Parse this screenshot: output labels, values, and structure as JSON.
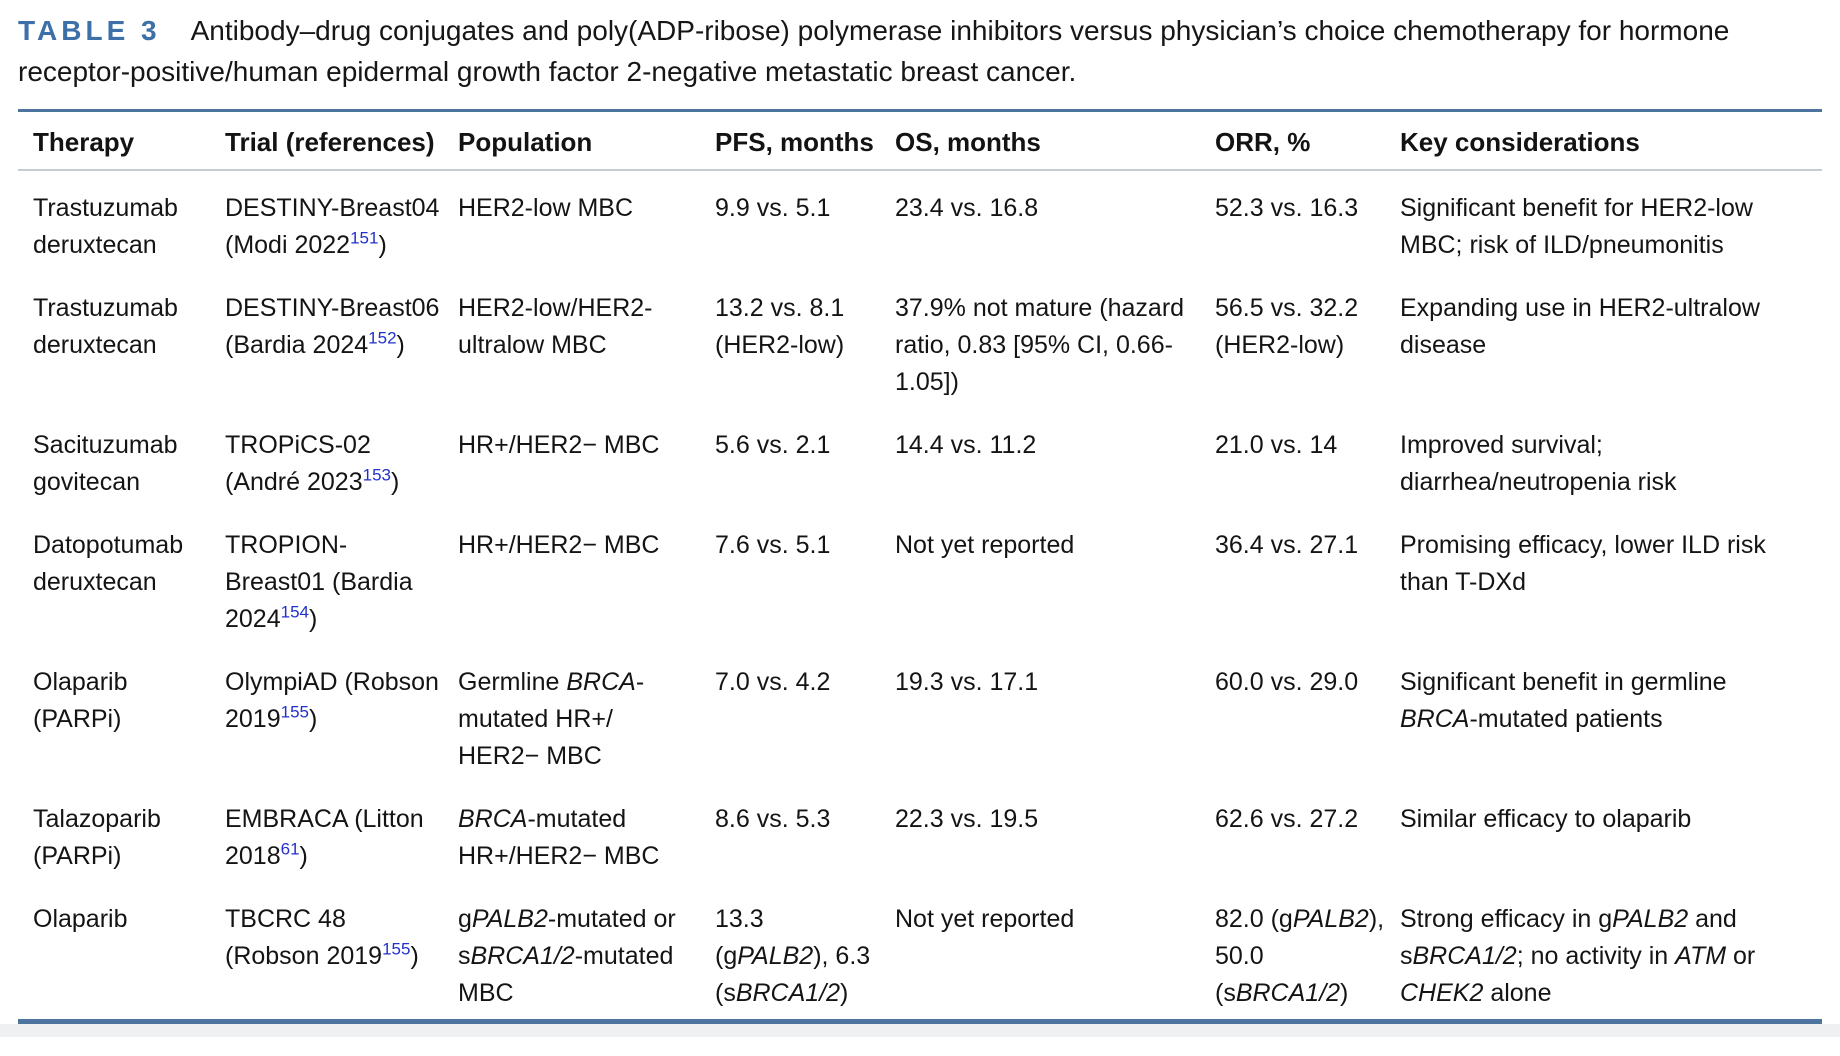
{
  "colors": {
    "label_blue": "#3d6fa8",
    "rule_blue": "#4d749e",
    "ref_blue": "#2230cc"
  },
  "header": {
    "label": "TABLE 3",
    "caption": "Antibody–drug conjugates and poly(ADP-ribose) polymerase inhibitors versus physician’s choice chemotherapy for hormone receptor-positive/human epidermal growth factor 2-negative metastatic breast cancer."
  },
  "table": {
    "columns": [
      "Therapy",
      "Trial (references)",
      "Population",
      "PFS, months",
      "OS, months",
      "ORR, %",
      "Key considerations"
    ],
    "rows": [
      {
        "cells": [
          [
            {
              "t": "Trastuzumab deruxtecan"
            }
          ],
          [
            {
              "t": "DESTINY-Breast04 (Modi 2022"
            },
            {
              "t": "151",
              "s": "sup"
            },
            {
              "t": ")"
            }
          ],
          [
            {
              "t": "HER2-low MBC"
            }
          ],
          [
            {
              "t": "9.9 vs. 5.1"
            }
          ],
          [
            {
              "t": "23.4 vs. 16.8"
            }
          ],
          [
            {
              "t": "52.3 vs. 16.3"
            }
          ],
          [
            {
              "t": "Significant benefit for HER2-low MBC; risk of ILD/pneumonitis"
            }
          ]
        ]
      },
      {
        "cells": [
          [
            {
              "t": "Trastuzumab deruxtecan"
            }
          ],
          [
            {
              "t": "DESTINY-Breast06 (Bardia 2024"
            },
            {
              "t": "152",
              "s": "sup"
            },
            {
              "t": ")"
            }
          ],
          [
            {
              "t": "HER2-low/HER2-ultralow MBC"
            }
          ],
          [
            {
              "t": "13.2 vs. 8.1 (HER2-low)"
            }
          ],
          [
            {
              "t": "37.9% not mature (hazard ratio, 0.83 [95% CI, 0.66-1.05])"
            }
          ],
          [
            {
              "t": "56.5 vs. 32.2 (HER2-low)"
            }
          ],
          [
            {
              "t": "Expanding use in HER2-ultralow disease"
            }
          ]
        ]
      },
      {
        "cells": [
          [
            {
              "t": "Sacituzumab govitecan"
            }
          ],
          [
            {
              "t": "TROPiCS-02 (André 2023"
            },
            {
              "t": "153",
              "s": "sup"
            },
            {
              "t": ")"
            }
          ],
          [
            {
              "t": "HR+/HER2− MBC"
            }
          ],
          [
            {
              "t": "5.6 vs. 2.1"
            }
          ],
          [
            {
              "t": "14.4 vs. 11.2"
            }
          ],
          [
            {
              "t": "21.0 vs. 14"
            }
          ],
          [
            {
              "t": "Improved survival; diarrhea/neutropenia risk"
            }
          ]
        ]
      },
      {
        "cells": [
          [
            {
              "t": "Datopotumab deruxtecan"
            }
          ],
          [
            {
              "t": "TROPION-Breast01 (Bardia 2024"
            },
            {
              "t": "154",
              "s": "sup"
            },
            {
              "t": ")"
            }
          ],
          [
            {
              "t": "HR+/HER2− MBC"
            }
          ],
          [
            {
              "t": "7.6 vs. 5.1"
            }
          ],
          [
            {
              "t": "Not yet reported"
            }
          ],
          [
            {
              "t": "36.4 vs. 27.1"
            }
          ],
          [
            {
              "t": "Promising efficacy, lower ILD risk than T-DXd"
            }
          ]
        ]
      },
      {
        "cells": [
          [
            {
              "t": "Olaparib (PARPi)"
            }
          ],
          [
            {
              "t": "OlympiAD (Robson 2019"
            },
            {
              "t": "155",
              "s": "sup"
            },
            {
              "t": ")"
            }
          ],
          [
            {
              "t": "Germline "
            },
            {
              "t": "BRCA",
              "s": "i"
            },
            {
              "t": "-mutated HR+/ HER2− MBC"
            }
          ],
          [
            {
              "t": "7.0 vs. 4.2"
            }
          ],
          [
            {
              "t": "19.3 vs. 17.1"
            }
          ],
          [
            {
              "t": "60.0 vs. 29.0"
            }
          ],
          [
            {
              "t": "Significant benefit in germline "
            },
            {
              "t": "BRCA",
              "s": "i"
            },
            {
              "t": "-mutated patients"
            }
          ]
        ]
      },
      {
        "cells": [
          [
            {
              "t": "Talazoparib (PARPi)"
            }
          ],
          [
            {
              "t": "EMBRACA (Litton 2018"
            },
            {
              "t": "61",
              "s": "sup"
            },
            {
              "t": ")"
            }
          ],
          [
            {
              "t": "BRCA",
              "s": "i"
            },
            {
              "t": "-mutated HR+/HER2− MBC"
            }
          ],
          [
            {
              "t": "8.6 vs. 5.3"
            }
          ],
          [
            {
              "t": "22.3 vs. 19.5"
            }
          ],
          [
            {
              "t": "62.6 vs. 27.2"
            }
          ],
          [
            {
              "t": "Similar efficacy to olaparib"
            }
          ]
        ]
      },
      {
        "cells": [
          [
            {
              "t": "Olaparib"
            }
          ],
          [
            {
              "t": "TBCRC 48 (Robson 2019"
            },
            {
              "t": "155",
              "s": "sup"
            },
            {
              "t": ")"
            }
          ],
          [
            {
              "t": "g"
            },
            {
              "t": "PALB2",
              "s": "i"
            },
            {
              "t": "-mutated or s"
            },
            {
              "t": "BRCA1/2",
              "s": "i"
            },
            {
              "t": "-mutated MBC"
            }
          ],
          [
            {
              "t": "13.3 (g"
            },
            {
              "t": "PALB2",
              "s": "i"
            },
            {
              "t": "), 6.3 (s"
            },
            {
              "t": "BRCA1/2",
              "s": "i"
            },
            {
              "t": ")"
            }
          ],
          [
            {
              "t": "Not yet reported"
            }
          ],
          [
            {
              "t": "82.0 (g"
            },
            {
              "t": "PALB2",
              "s": "i"
            },
            {
              "t": "), 50.0 (s"
            },
            {
              "t": "BRCA1/2",
              "s": "i"
            },
            {
              "t": ")"
            }
          ],
          [
            {
              "t": "Strong efficacy in g"
            },
            {
              "t": "PALB2",
              "s": "i"
            },
            {
              "t": " and s"
            },
            {
              "t": "BRCA1/2",
              "s": "i"
            },
            {
              "t": "; no activity in "
            },
            {
              "t": "ATM",
              "s": "i"
            },
            {
              "t": " or "
            },
            {
              "t": "CHEK2",
              "s": "i"
            },
            {
              "t": " alone"
            }
          ]
        ]
      }
    ]
  }
}
